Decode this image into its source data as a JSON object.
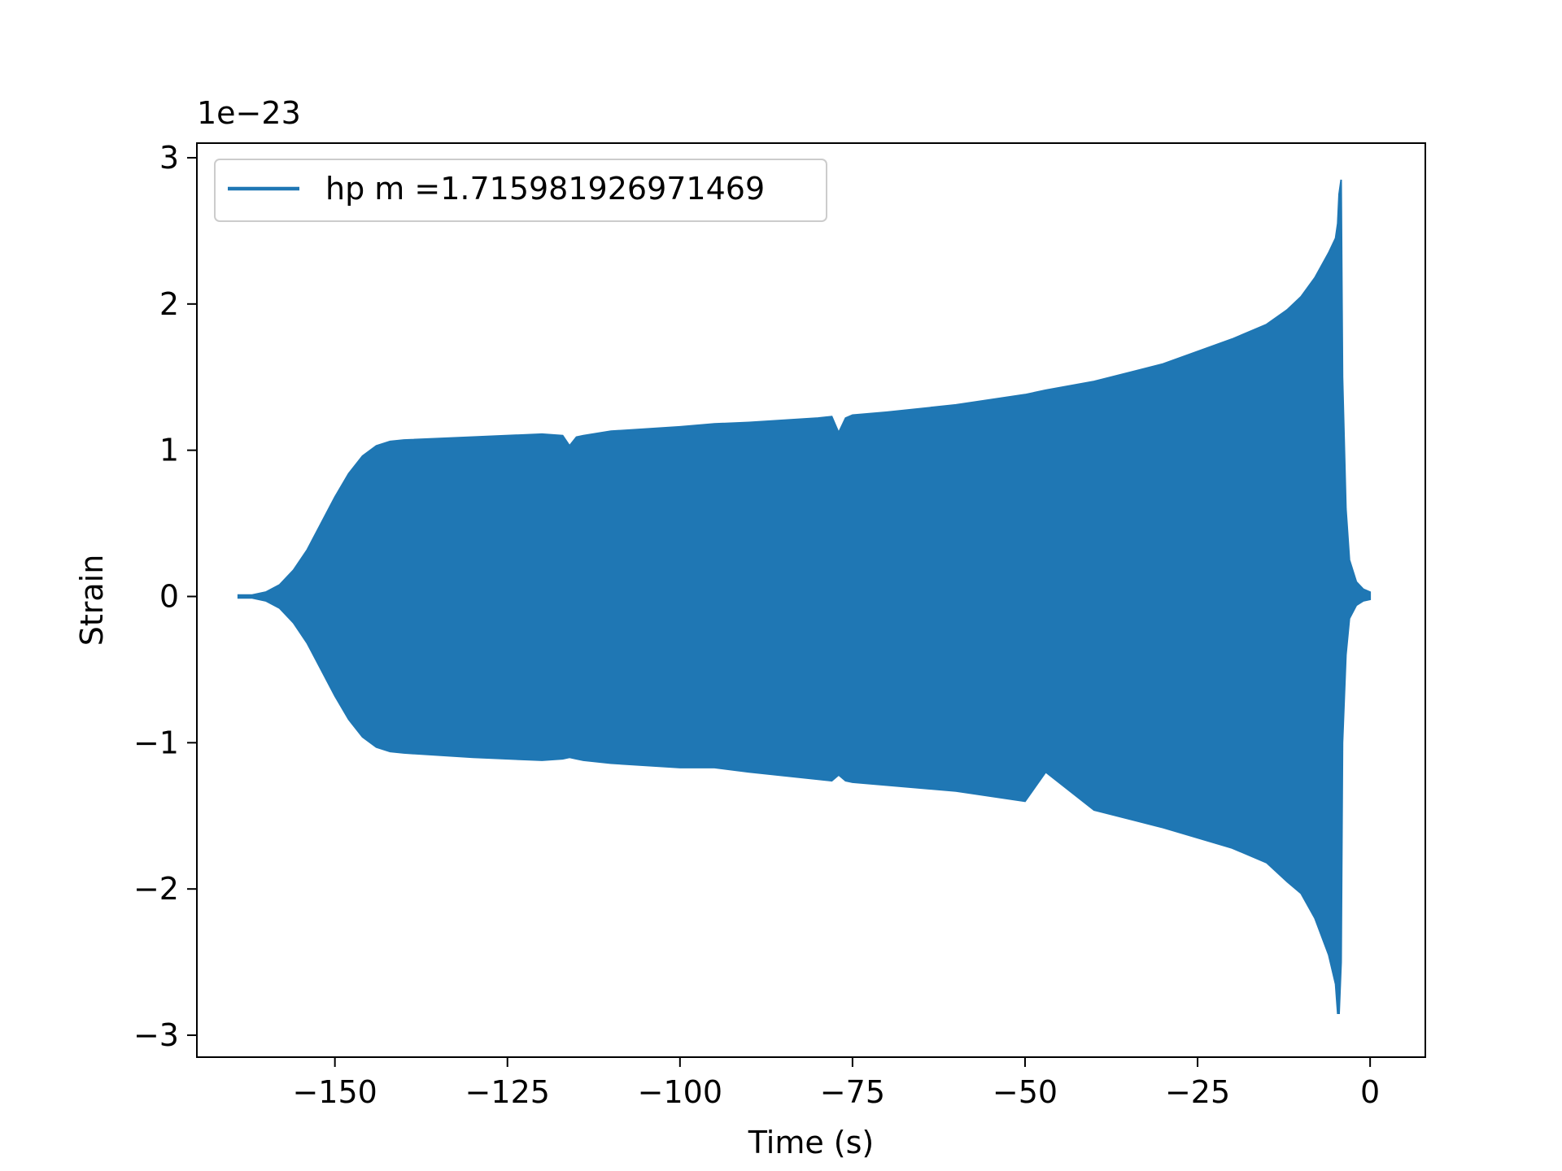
{
  "chart_data": {
    "type": "area",
    "title": "",
    "xlabel": "Time (s)",
    "ylabel": "Strain",
    "y_offset_label": "1e−23",
    "xlim": [
      -170,
      8
    ],
    "ylim": [
      -3.15,
      3.1
    ],
    "x_ticks": [
      -150,
      -125,
      -100,
      -75,
      -50,
      -25,
      0
    ],
    "x_tick_labels": [
      "−150",
      "−125",
      "−100",
      "−75",
      "−50",
      "−25",
      "0"
    ],
    "y_ticks": [
      -3,
      -2,
      -1,
      0,
      1,
      2,
      3
    ],
    "y_tick_labels": [
      "−3",
      "−2",
      "−1",
      "0",
      "1",
      "2",
      "3"
    ],
    "grid": false,
    "legend": {
      "placement": "upper-left",
      "entries": [
        "hp m =1.715981926971469"
      ]
    },
    "series": [
      {
        "name": "hp m =1.715981926971469",
        "color": "#1f77b4",
        "envelope_x": [
          -164,
          -162,
          -160,
          -158,
          -156,
          -154,
          -152,
          -150,
          -148,
          -146,
          -144,
          -142,
          -140,
          -130,
          -120,
          -117,
          -116,
          -115,
          -114,
          -110,
          -100,
          -95,
          -90,
          -80,
          -78,
          -77,
          -76,
          -75,
          -70,
          -60,
          -50,
          -47,
          -40,
          -30,
          -20,
          -15,
          -12,
          -10,
          -8,
          -6,
          -5,
          -4.7,
          -4.5,
          -4.2,
          -4.0,
          -3.5,
          -3,
          -2,
          -1,
          0
        ],
        "envelope_upper": [
          0.01,
          0.01,
          0.03,
          0.08,
          0.18,
          0.32,
          0.5,
          0.68,
          0.84,
          0.96,
          1.03,
          1.06,
          1.07,
          1.09,
          1.11,
          1.1,
          1.03,
          1.09,
          1.1,
          1.13,
          1.16,
          1.18,
          1.19,
          1.22,
          1.23,
          1.12,
          1.22,
          1.24,
          1.26,
          1.31,
          1.38,
          1.41,
          1.47,
          1.59,
          1.76,
          1.86,
          1.96,
          2.05,
          2.18,
          2.35,
          2.45,
          2.55,
          2.75,
          2.85,
          1.5,
          0.6,
          0.25,
          0.1,
          0.05,
          0.03
        ],
        "envelope_lower": [
          -0.01,
          -0.01,
          -0.03,
          -0.08,
          -0.18,
          -0.32,
          -0.5,
          -0.68,
          -0.84,
          -0.96,
          -1.03,
          -1.06,
          -1.07,
          -1.1,
          -1.12,
          -1.11,
          -1.1,
          -1.11,
          -1.12,
          -1.14,
          -1.17,
          -1.17,
          -1.2,
          -1.25,
          -1.26,
          -1.22,
          -1.26,
          -1.27,
          -1.29,
          -1.33,
          -1.4,
          -1.2,
          -1.46,
          -1.58,
          -1.72,
          -1.82,
          -1.95,
          -2.03,
          -2.2,
          -2.45,
          -2.65,
          -2.85,
          -2.85,
          -2.5,
          -1.0,
          -0.4,
          -0.15,
          -0.06,
          -0.03,
          -0.02
        ]
      }
    ]
  }
}
